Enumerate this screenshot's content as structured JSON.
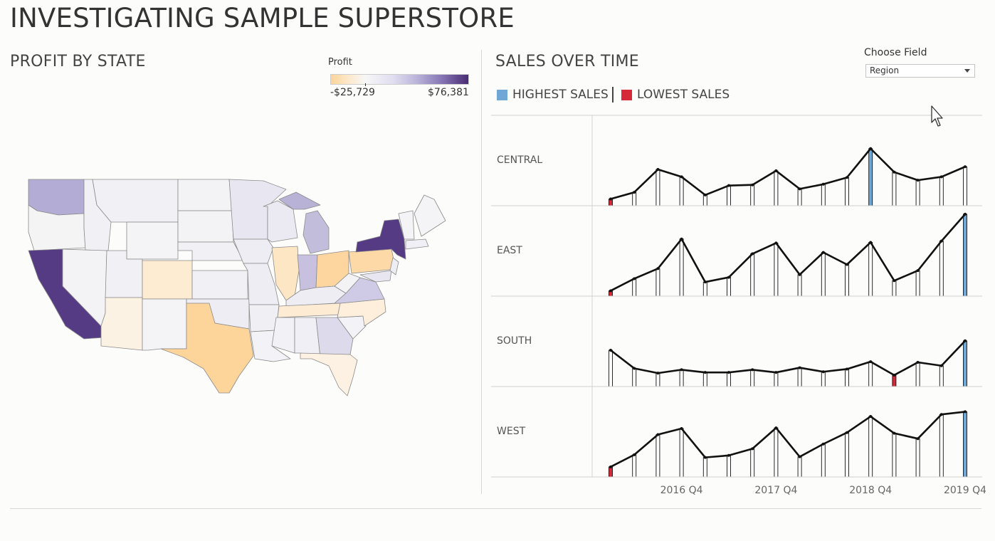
{
  "dashboard": {
    "title": "INVESTIGATING SAMPLE SUPERSTORE"
  },
  "map_panel": {
    "title": "PROFIT BY STATE",
    "legend": {
      "title": "Profit",
      "min_label": "-$25,729",
      "max_label": "$76,381",
      "low_color": "#fdd49a",
      "high_color": "#4a2c74"
    }
  },
  "sales_panel": {
    "title": "SALES OVER TIME",
    "choose_field_label": "Choose Field",
    "choose_field_value": "Region",
    "legend": {
      "highest_label": "HIGHEST SALES",
      "lowest_label": "LOWEST SALES",
      "highest_color": "#6fa8d6",
      "lowest_color": "#d62a3a"
    }
  },
  "chart_data": {
    "type": "line",
    "x": [
      "2016 Q1",
      "2016 Q2",
      "2016 Q3",
      "2016 Q4",
      "2017 Q1",
      "2017 Q2",
      "2017 Q3",
      "2017 Q4",
      "2018 Q1",
      "2018 Q2",
      "2018 Q3",
      "2018 Q4",
      "2019 Q1",
      "2019 Q2",
      "2019 Q3",
      "2019 Q4"
    ],
    "x_tick_labels": [
      "2016 Q4",
      "2017 Q4",
      "2018 Q4",
      "2019 Q4"
    ],
    "rows": [
      {
        "label": "CENTRAL",
        "values": [
          10,
          20,
          54,
          43,
          16,
          30,
          31,
          52,
          25,
          32,
          42,
          85,
          50,
          38,
          43,
          58
        ],
        "highest_index": 11,
        "lowest_index": 0
      },
      {
        "label": "EAST",
        "values": [
          8,
          26,
          41,
          85,
          21,
          28,
          63,
          79,
          32,
          65,
          47,
          80,
          23,
          38,
          82,
          122
        ],
        "highest_index": 15,
        "lowest_index": 0
      },
      {
        "label": "SOUTH",
        "values": [
          54,
          27,
          20,
          25,
          21,
          21,
          25,
          21,
          28,
          22,
          26,
          37,
          17,
          36,
          31,
          68
        ],
        "highest_index": 15,
        "lowest_index": 12
      },
      {
        "label": "WEST",
        "values": [
          15,
          33,
          63,
          72,
          29,
          32,
          42,
          73,
          30,
          49,
          66,
          90,
          65,
          57,
          93,
          97
        ],
        "highest_index": 15,
        "lowest_index": 0
      }
    ],
    "line_color": "#111111",
    "bar_color": "#ffffff"
  }
}
